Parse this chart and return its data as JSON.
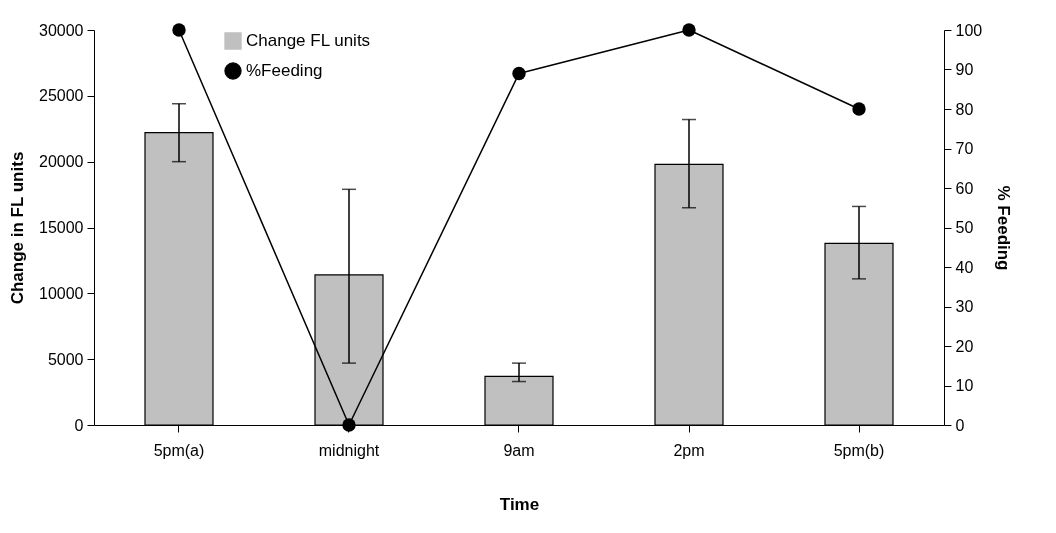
{
  "chart_data": {
    "type": "bar",
    "categories": [
      "5pm(a)",
      "midnight",
      "9am",
      "2pm",
      "5pm(b)"
    ],
    "xlabel": "Time",
    "ylabel": "Change in FL units",
    "y2label": "% Feeding",
    "ylim": [
      0,
      30000
    ],
    "yticks": [
      0,
      5000,
      10000,
      15000,
      20000,
      25000,
      30000
    ],
    "y2lim": [
      0,
      100
    ],
    "y2ticks": [
      0,
      10,
      20,
      30,
      40,
      50,
      60,
      70,
      80,
      90,
      100
    ],
    "legend": "top left",
    "marker": "circle",
    "series": [
      {
        "name": "Change FL units",
        "color": "#c0c0c0",
        "values": [
          22200,
          11400,
          3700,
          19800,
          13800
        ],
        "errors": [
          [
            20000,
            24400
          ],
          [
            4700,
            17900
          ],
          [
            3300,
            4700
          ],
          [
            16500,
            23200
          ],
          [
            11100,
            16600
          ]
        ]
      },
      {
        "name": "%Feeding",
        "type": "line",
        "axis": "y2",
        "color": "#000000",
        "values": [
          100,
          0,
          89,
          100,
          80
        ]
      }
    ]
  }
}
